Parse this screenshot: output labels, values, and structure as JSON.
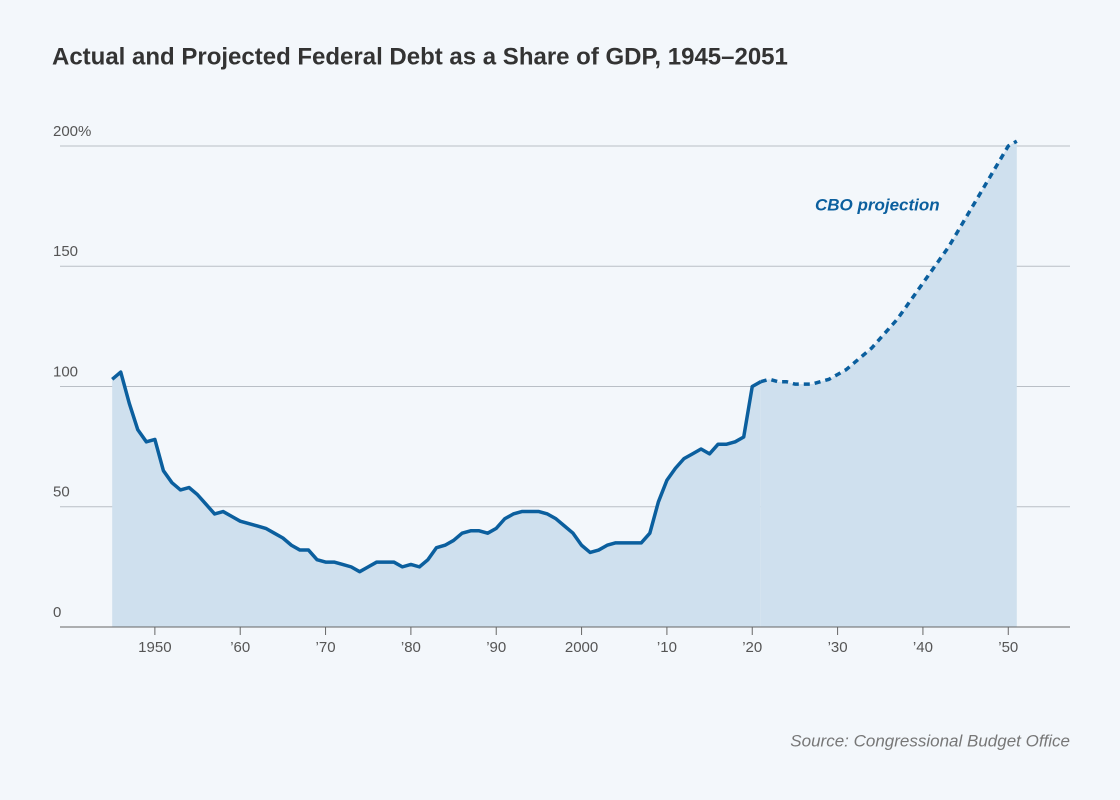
{
  "chart_data": {
    "type": "line",
    "title": "Actual and Projected Federal Debt as a Share of GDP, 1945–2051",
    "annotation": "CBO projection",
    "source": "Source: Congressional Budget Office",
    "x": [
      1945,
      1946,
      1947,
      1948,
      1949,
      1950,
      1951,
      1952,
      1953,
      1954,
      1955,
      1956,
      1957,
      1958,
      1959,
      1960,
      1961,
      1962,
      1963,
      1964,
      1965,
      1966,
      1967,
      1968,
      1969,
      1970,
      1971,
      1972,
      1973,
      1974,
      1975,
      1976,
      1977,
      1978,
      1979,
      1980,
      1981,
      1982,
      1983,
      1984,
      1985,
      1986,
      1987,
      1988,
      1989,
      1990,
      1991,
      1992,
      1993,
      1994,
      1995,
      1996,
      1997,
      1998,
      1999,
      2000,
      2001,
      2002,
      2003,
      2004,
      2005,
      2006,
      2007,
      2008,
      2009,
      2010,
      2011,
      2012,
      2013,
      2014,
      2015,
      2016,
      2017,
      2018,
      2019,
      2020,
      2021,
      2022,
      2023,
      2024,
      2025,
      2026,
      2027,
      2028,
      2029,
      2030,
      2031,
      2032,
      2033,
      2034,
      2035,
      2036,
      2037,
      2038,
      2039,
      2040,
      2041,
      2042,
      2043,
      2044,
      2045,
      2046,
      2047,
      2048,
      2049,
      2050,
      2051
    ],
    "series": [
      {
        "color": "#0b5f9e",
        "line_style": "solid",
        "values": [
          103,
          106,
          93,
          82,
          77,
          78,
          65,
          60,
          57,
          58,
          55,
          51,
          47,
          48,
          46,
          44,
          43,
          42,
          41,
          39,
          37,
          34,
          32,
          32,
          28,
          27,
          27,
          26,
          25,
          23,
          25,
          27,
          27,
          27,
          25,
          26,
          25,
          28,
          33,
          34,
          36,
          39,
          40,
          40,
          39,
          41,
          45,
          47,
          48,
          48,
          48,
          47,
          45,
          42,
          39,
          34,
          31,
          32,
          34,
          35,
          35,
          35,
          35,
          39,
          52,
          61,
          66,
          70,
          72,
          74,
          72,
          76,
          76,
          77,
          79,
          100,
          102,
          null,
          null,
          null,
          null,
          null,
          null,
          null,
          null,
          null,
          null,
          null,
          null,
          null,
          null,
          null,
          null,
          null,
          null,
          null,
          null,
          null,
          null,
          null,
          null,
          null,
          null,
          null,
          null,
          null,
          null
        ]
      },
      {
        "name": "CBO projection",
        "color": "#0b5f9e",
        "line_style": "dashed",
        "values": [
          null,
          null,
          null,
          null,
          null,
          null,
          null,
          null,
          null,
          null,
          null,
          null,
          null,
          null,
          null,
          null,
          null,
          null,
          null,
          null,
          null,
          null,
          null,
          null,
          null,
          null,
          null,
          null,
          null,
          null,
          null,
          null,
          null,
          null,
          null,
          null,
          null,
          null,
          null,
          null,
          null,
          null,
          null,
          null,
          null,
          null,
          null,
          null,
          null,
          null,
          null,
          null,
          null,
          null,
          null,
          null,
          null,
          null,
          null,
          null,
          null,
          null,
          null,
          null,
          null,
          null,
          null,
          null,
          null,
          null,
          null,
          null,
          null,
          null,
          null,
          null,
          102,
          103,
          102,
          102,
          101,
          101,
          101,
          102,
          103,
          105,
          107,
          110,
          113,
          116,
          120,
          124,
          128,
          133,
          138,
          143,
          148,
          153,
          158,
          164,
          170,
          176,
          182,
          188,
          194,
          200,
          202
        ]
      }
    ],
    "area_color": "#cfe0ee",
    "xlim": [
      1939,
      2057
    ],
    "xticks": [
      1950,
      {
        "value": 1960,
        "label": "’60"
      },
      {
        "value": 1970,
        "label": "’70"
      },
      {
        "value": 1980,
        "label": "’80"
      },
      {
        "value": 1990,
        "label": "’90"
      },
      2000,
      {
        "value": 2010,
        "label": "’10"
      },
      {
        "value": 2020,
        "label": "’20"
      },
      {
        "value": 2030,
        "label": "’30"
      },
      {
        "value": 2040,
        "label": "’40"
      },
      {
        "value": 2050,
        "label": "’50"
      }
    ],
    "ylim": [
      0,
      200
    ],
    "yticks": [
      0,
      50,
      100,
      150,
      {
        "value": 200,
        "label": "200%"
      }
    ],
    "grid": true
  }
}
